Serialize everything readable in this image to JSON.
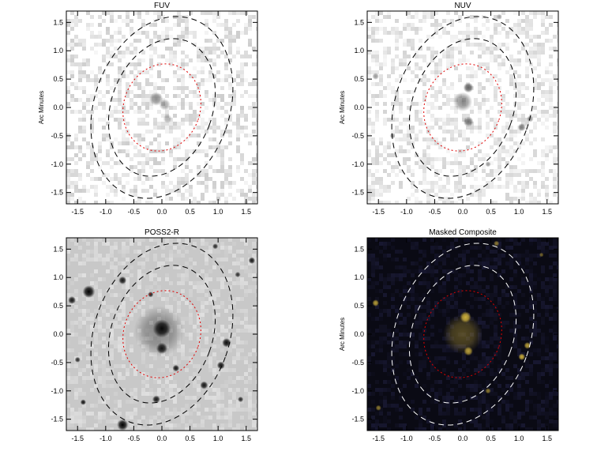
{
  "chart_data": [
    {
      "type": "image",
      "title": "FUV",
      "ylabel": "Arc Minutes",
      "xlim": [
        -1.7,
        1.7
      ],
      "ylim": [
        -1.7,
        1.7
      ],
      "xticks": [
        -1.5,
        -1.0,
        -0.5,
        0.0,
        0.5,
        1.0,
        1.5
      ],
      "yticks": [
        -1.5,
        -1.0,
        -0.5,
        0.0,
        0.5,
        1.0,
        1.5
      ],
      "background": "#ffffff",
      "noise_color": "#8a8a8a",
      "source_color": "#404040",
      "ellipse_color": "#000000",
      "inner_ellipse_color": "#e00000",
      "sources": [
        {
          "x": -0.1,
          "y": 0.15,
          "r": 0.12,
          "a": 0.6
        },
        {
          "x": 0.05,
          "y": 0.05,
          "r": 0.1,
          "a": 0.45
        },
        {
          "x": 0.1,
          "y": -0.2,
          "r": 0.08,
          "a": 0.35
        }
      ]
    },
    {
      "type": "image",
      "title": "NUV",
      "ylabel": "Arc Minutes",
      "xlim": [
        -1.7,
        1.7
      ],
      "ylim": [
        -1.7,
        1.7
      ],
      "xticks": [
        -1.5,
        -1.0,
        -0.5,
        0.0,
        0.5,
        1.0,
        1.5
      ],
      "yticks": [
        -1.5,
        -1.0,
        -0.5,
        0.0,
        0.5,
        1.0,
        1.5
      ],
      "background": "#ffffff",
      "noise_color": "#9a9a9a",
      "source_color": "#303030",
      "ellipse_color": "#000000",
      "inner_ellipse_color": "#e00000",
      "sources": [
        {
          "x": 0.1,
          "y": 0.35,
          "r": 0.09,
          "a": 0.75
        },
        {
          "x": 0.0,
          "y": 0.1,
          "r": 0.17,
          "a": 0.55
        },
        {
          "x": 0.1,
          "y": -0.25,
          "r": 0.09,
          "a": 0.7
        },
        {
          "x": -1.55,
          "y": 0.55,
          "r": 0.06,
          "a": 0.5
        },
        {
          "x": 1.05,
          "y": -0.35,
          "r": 0.07,
          "a": 0.65
        },
        {
          "x": 1.2,
          "y": -0.2,
          "r": 0.06,
          "a": 0.5
        },
        {
          "x": 0.45,
          "y": -1.0,
          "r": 0.05,
          "a": 0.5
        },
        {
          "x": -1.25,
          "y": -0.5,
          "r": 0.05,
          "a": 0.4
        },
        {
          "x": 0.65,
          "y": 1.6,
          "r": 0.05,
          "a": 0.4
        }
      ]
    },
    {
      "type": "image",
      "title": "POSS2-R",
      "ylabel": "",
      "xlim": [
        -1.7,
        1.7
      ],
      "ylim": [
        -1.7,
        1.7
      ],
      "xticks": [
        -1.5,
        -1.0,
        -0.5,
        0.0,
        0.5,
        1.0,
        1.5
      ],
      "yticks": [
        -1.5,
        -1.0,
        -0.5,
        0.0,
        0.5,
        1.0,
        1.5
      ],
      "background": "#c8c8c8",
      "noise_color": "#ffffff",
      "source_color": "#000000",
      "ellipse_color": "#000000",
      "inner_ellipse_color": "#e00000",
      "sources": [
        {
          "x": -0.05,
          "y": 0.05,
          "r": 0.45,
          "a": 0.35
        },
        {
          "x": 0.0,
          "y": 0.1,
          "r": 0.16,
          "a": 0.95
        },
        {
          "x": 0.0,
          "y": -0.25,
          "r": 0.1,
          "a": 0.9
        },
        {
          "x": -1.3,
          "y": 0.75,
          "r": 0.11,
          "a": 1.0
        },
        {
          "x": -1.6,
          "y": 0.6,
          "r": 0.07,
          "a": 0.9
        },
        {
          "x": -0.7,
          "y": 0.95,
          "r": 0.07,
          "a": 0.9
        },
        {
          "x": 1.15,
          "y": -0.15,
          "r": 0.08,
          "a": 0.95
        },
        {
          "x": 1.05,
          "y": -0.55,
          "r": 0.07,
          "a": 0.9
        },
        {
          "x": 0.75,
          "y": -0.9,
          "r": 0.07,
          "a": 0.9
        },
        {
          "x": 0.25,
          "y": -0.6,
          "r": 0.06,
          "a": 0.9
        },
        {
          "x": -0.1,
          "y": -1.15,
          "r": 0.07,
          "a": 0.9
        },
        {
          "x": -0.7,
          "y": -1.6,
          "r": 0.1,
          "a": 1.0
        },
        {
          "x": -1.4,
          "y": -1.2,
          "r": 0.05,
          "a": 0.9
        },
        {
          "x": -1.5,
          "y": -0.45,
          "r": 0.05,
          "a": 0.8
        },
        {
          "x": 1.6,
          "y": 1.3,
          "r": 0.06,
          "a": 0.9
        },
        {
          "x": 0.95,
          "y": 1.55,
          "r": 0.05,
          "a": 0.8
        },
        {
          "x": 1.35,
          "y": 1.05,
          "r": 0.05,
          "a": 0.8
        },
        {
          "x": -0.2,
          "y": 0.7,
          "r": 0.05,
          "a": 0.85
        },
        {
          "x": 1.4,
          "y": -1.15,
          "r": 0.05,
          "a": 0.8
        }
      ]
    },
    {
      "type": "image",
      "title": "Masked Composite",
      "ylabel": "Arc Minutes",
      "xlim": [
        -1.7,
        1.7
      ],
      "ylim": [
        -1.7,
        1.7
      ],
      "xticks": [
        -1.5,
        -1.0,
        -0.5,
        0.0,
        0.5,
        1.0,
        1.5
      ],
      "yticks": [
        -1.5,
        -1.0,
        -0.5,
        0.0,
        0.5,
        1.0,
        1.5
      ],
      "background": "#0a0a14",
      "noise_color": "#2a2a55",
      "source_color": "#e0c040",
      "ellipse_color": "#ffffff",
      "inner_ellipse_color": "#e00000",
      "sources": [
        {
          "x": 0.0,
          "y": 0.0,
          "r": 0.35,
          "a": 0.35
        },
        {
          "x": 0.05,
          "y": 0.3,
          "r": 0.1,
          "a": 0.9
        },
        {
          "x": 0.1,
          "y": -0.3,
          "r": 0.08,
          "a": 0.8
        },
        {
          "x": -1.55,
          "y": 0.55,
          "r": 0.06,
          "a": 0.8
        },
        {
          "x": 1.05,
          "y": -0.4,
          "r": 0.06,
          "a": 0.9
        },
        {
          "x": 1.15,
          "y": -0.2,
          "r": 0.06,
          "a": 0.8
        },
        {
          "x": 0.45,
          "y": -1.0,
          "r": 0.05,
          "a": 0.6
        },
        {
          "x": -1.5,
          "y": -1.3,
          "r": 0.05,
          "a": 0.6
        },
        {
          "x": 0.6,
          "y": 1.6,
          "r": 0.05,
          "a": 0.6
        },
        {
          "x": 1.4,
          "y": 1.4,
          "r": 0.04,
          "a": 0.5
        }
      ]
    }
  ],
  "ellipses": {
    "center": [
      0.0,
      0.0
    ],
    "angle_deg": 20,
    "outer": [
      1.2,
      1.65
    ],
    "middle": [
      0.9,
      1.25
    ],
    "inner": [
      0.68,
      0.78
    ]
  }
}
